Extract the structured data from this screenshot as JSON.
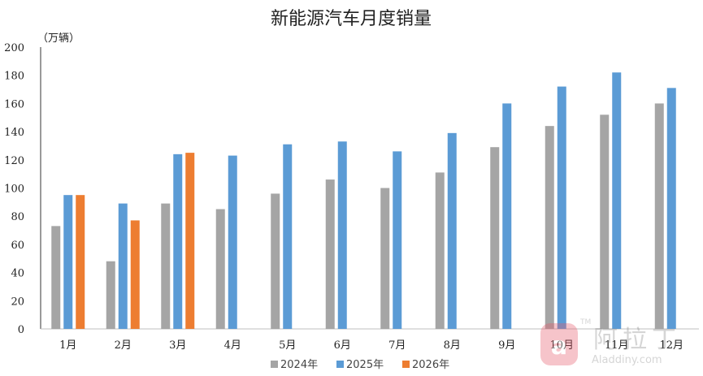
{
  "chart_data": {
    "type": "bar",
    "title": "新能源汽车月度销量",
    "unit_label": "（万辆）",
    "ylim": [
      0,
      200
    ],
    "yticks": [
      0,
      20,
      40,
      60,
      80,
      100,
      120,
      140,
      160,
      180,
      200
    ],
    "categories": [
      "1月",
      "2月",
      "3月",
      "4月",
      "5月",
      "6月",
      "7月",
      "8月",
      "9月",
      "10月",
      "11月",
      "12月"
    ],
    "series": [
      {
        "name": "2024年",
        "color": "#a5a5a5",
        "values": [
          73,
          48,
          89,
          85,
          96,
          106,
          100,
          111,
          129,
          144,
          152,
          160
        ]
      },
      {
        "name": "2025年",
        "color": "#5b9bd5",
        "values": [
          95,
          89,
          124,
          123,
          131,
          133,
          126,
          139,
          160,
          172,
          182,
          171
        ]
      },
      {
        "name": "2026年",
        "color": "#ed7d31",
        "values": [
          95,
          77,
          125,
          null,
          null,
          null,
          null,
          null,
          null,
          null,
          null,
          null
        ]
      }
    ],
    "grid": false,
    "legend_position": "bottom"
  },
  "watermark": {
    "brand": "阿拉丁",
    "site": "Aladdiny.com",
    "mark": "TM"
  }
}
